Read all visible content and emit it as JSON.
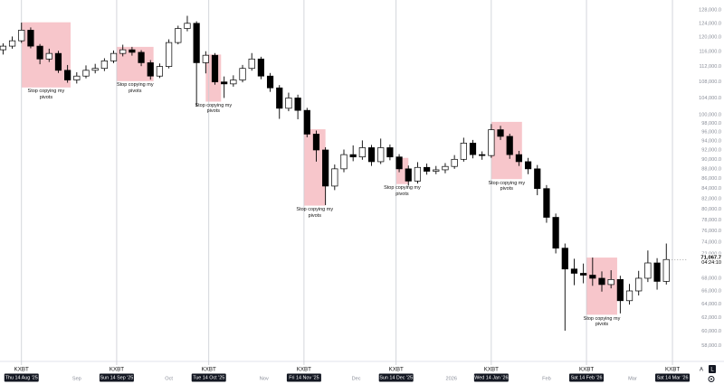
{
  "chart_data": {
    "type": "candlestick",
    "log_scale": true,
    "grid": false,
    "up_color": "#ffffff",
    "down_color": "#000000",
    "x": [
      "2025-08-08",
      "2025-08-11",
      "2025-08-14",
      "2025-08-17",
      "2025-08-20",
      "2025-08-23",
      "2025-08-26",
      "2025-08-29",
      "2025-09-01",
      "2025-09-04",
      "2025-09-07",
      "2025-09-10",
      "2025-09-13",
      "2025-09-16",
      "2025-09-19",
      "2025-09-22",
      "2025-09-25",
      "2025-09-28",
      "2025-10-01",
      "2025-10-04",
      "2025-10-07",
      "2025-10-10",
      "2025-10-13",
      "2025-10-16",
      "2025-10-19",
      "2025-10-22",
      "2025-10-25",
      "2025-10-28",
      "2025-10-31",
      "2025-11-03",
      "2025-11-06",
      "2025-11-09",
      "2025-11-12",
      "2025-11-15",
      "2025-11-18",
      "2025-11-21",
      "2025-11-24",
      "2025-11-27",
      "2025-11-30",
      "2025-12-03",
      "2025-12-06",
      "2025-12-09",
      "2025-12-12",
      "2025-12-15",
      "2025-12-18",
      "2025-12-21",
      "2025-12-24",
      "2025-12-27",
      "2025-12-30",
      "2026-01-02",
      "2026-01-05",
      "2026-01-08",
      "2026-01-11",
      "2026-01-14",
      "2026-01-17",
      "2026-01-20",
      "2026-01-23",
      "2026-01-26",
      "2026-01-29",
      "2026-02-01",
      "2026-02-04",
      "2026-02-07",
      "2026-02-10",
      "2026-02-13",
      "2026-02-16",
      "2026-02-19",
      "2026-02-22",
      "2026-02-25",
      "2026-02-28",
      "2026-03-03",
      "2026-03-06",
      "2026-03-09",
      "2026-03-12"
    ],
    "open": [
      116500,
      117500,
      119000,
      122000,
      117500,
      114000,
      115500,
      111000,
      108500,
      109500,
      111000,
      111500,
      113500,
      115500,
      116500,
      115800,
      113000,
      109500,
      112000,
      118500,
      122500,
      124000,
      113000,
      115000,
      108000,
      107500,
      108500,
      111500,
      114000,
      109500,
      106500,
      101500,
      104000,
      101000,
      95500,
      92000,
      84500,
      88000,
      91000,
      90500,
      92500,
      89500,
      92500,
      90500,
      88000,
      85500,
      88300,
      87500,
      87800,
      88500,
      90000,
      93500,
      91000,
      90800,
      96500,
      95000,
      91000,
      89500,
      88000,
      84000,
      78500,
      73000,
      69500,
      68800,
      68500,
      68000,
      67000,
      67800,
      64500,
      66000,
      68000,
      70500,
      67500
    ],
    "high": [
      118300,
      120200,
      124200,
      122800,
      118100,
      116800,
      116200,
      112400,
      110500,
      112300,
      112700,
      114200,
      116300,
      117900,
      117300,
      116400,
      113700,
      112800,
      119400,
      123300,
      126200,
      124600,
      116100,
      115600,
      109400,
      109700,
      112400,
      115600,
      114600,
      110300,
      107200,
      105300,
      104800,
      101600,
      96300,
      92600,
      88900,
      92100,
      93000,
      94100,
      93100,
      94500,
      93200,
      91100,
      88700,
      89400,
      89100,
      88600,
      89200,
      90900,
      94700,
      94200,
      91700,
      97800,
      97400,
      95600,
      91800,
      90300,
      88800,
      84700,
      79200,
      73800,
      71200,
      70400,
      71400,
      69100,
      69300,
      68400,
      67100,
      69200,
      72600,
      71300,
      73800
    ],
    "low": [
      115200,
      116800,
      118400,
      116900,
      112600,
      113200,
      110300,
      107800,
      107600,
      108900,
      110200,
      110800,
      112900,
      114700,
      114900,
      112100,
      108600,
      109000,
      111500,
      118000,
      121700,
      102000,
      110200,
      107300,
      104000,
      106800,
      107900,
      110900,
      108700,
      105500,
      99000,
      100800,
      98900,
      94800,
      89500,
      80800,
      83700,
      87300,
      89600,
      89900,
      88600,
      89000,
      89800,
      87300,
      84600,
      85000,
      86800,
      86900,
      87100,
      88000,
      89500,
      90200,
      89900,
      90300,
      94200,
      90100,
      88600,
      86900,
      82700,
      77500,
      72100,
      60100,
      66900,
      67200,
      66800,
      65900,
      66400,
      62600,
      63900,
      65300,
      67400,
      66200,
      67000
    ],
    "close": [
      117500,
      119000,
      122000,
      117500,
      114000,
      115500,
      111000,
      108500,
      109500,
      111000,
      111500,
      113500,
      115500,
      116500,
      115800,
      113000,
      109500,
      112000,
      118500,
      122500,
      124000,
      113000,
      115000,
      108000,
      107500,
      108500,
      111500,
      114000,
      109500,
      106500,
      101500,
      104000,
      101000,
      95500,
      92000,
      84500,
      88000,
      91000,
      90500,
      92500,
      89500,
      92500,
      90500,
      88000,
      85500,
      88300,
      87500,
      87800,
      88500,
      90000,
      93500,
      91000,
      90800,
      96500,
      95000,
      91000,
      89500,
      88000,
      84000,
      78500,
      73000,
      69500,
      68800,
      68500,
      68000,
      67000,
      67800,
      64500,
      66000,
      68000,
      70500,
      67500,
      71067.7
    ],
    "xlim": [
      "2025-08-07",
      "2026-03-19"
    ],
    "xticks": [
      {
        "value": "2025-09-01",
        "label": "Sep"
      },
      {
        "value": "2025-10-01",
        "label": "Oct"
      },
      {
        "value": "2025-11-01",
        "label": "Nov"
      },
      {
        "value": "2025-12-01",
        "label": "Dec"
      },
      {
        "value": "2026-01-01",
        "label": "2026"
      },
      {
        "value": "2026-02-01",
        "label": "Feb"
      },
      {
        "value": "2026-03-01",
        "label": "Mar"
      }
    ],
    "markers": [
      {
        "value": "2025-08-14",
        "tag": "KXBT",
        "label": "Thu 14 Aug '25"
      },
      {
        "value": "2025-09-14",
        "tag": "KXBT",
        "label": "Sun 14 Sep '25"
      },
      {
        "value": "2025-10-14",
        "tag": "KXBT",
        "label": "Tue 14 Oct '25"
      },
      {
        "value": "2025-11-14",
        "tag": "KXBT",
        "label": "Fri 14 Nov '25"
      },
      {
        "value": "2025-12-14",
        "tag": "KXBT",
        "label": "Sun 14 Dec '25"
      },
      {
        "value": "2026-01-14",
        "tag": "KXBT",
        "label": "Wed 14 Jan '26"
      },
      {
        "value": "2026-02-14",
        "tag": "KXBT",
        "label": "Sat 14 Feb '26"
      },
      {
        "value": "2026-03-14",
        "tag": "KXBT",
        "label": "Sat 14 Mar '26"
      }
    ],
    "ylim": [
      55900,
      131000
    ],
    "yticks": [
      {
        "value": 58000,
        "label": "58,000.0"
      },
      {
        "value": 60000,
        "label": "60,000.0"
      },
      {
        "value": 62000,
        "label": "62,000.0"
      },
      {
        "value": 64000,
        "label": "64,000.0"
      },
      {
        "value": 66000,
        "label": "66,000.0"
      },
      {
        "value": 68000,
        "label": "68,000.0"
      },
      {
        "value": 72000,
        "label": "72,000.0"
      },
      {
        "value": 74000,
        "label": "74,000.0"
      },
      {
        "value": 76000,
        "label": "76,000.0"
      },
      {
        "value": 78000,
        "label": "78,000.0"
      },
      {
        "value": 80000,
        "label": "80,000.0"
      },
      {
        "value": 82000,
        "label": "82,000.0"
      },
      {
        "value": 84000,
        "label": "84,000.0"
      },
      {
        "value": 86000,
        "label": "86,000.0"
      },
      {
        "value": 88000,
        "label": "88,000.0"
      },
      {
        "value": 90000,
        "label": "90,000.0"
      },
      {
        "value": 92000,
        "label": "92,000.0"
      },
      {
        "value": 94000,
        "label": "94,000.0"
      },
      {
        "value": 96000,
        "label": "96,000.0"
      },
      {
        "value": 98000,
        "label": "98,000.0"
      },
      {
        "value": 100000,
        "label": "100,000.0"
      },
      {
        "value": 104000,
        "label": "104,000.0"
      },
      {
        "value": 108000,
        "label": "108,000.0"
      },
      {
        "value": 112000,
        "label": "112,000.0"
      },
      {
        "value": 116000,
        "label": "116,000.0"
      },
      {
        "value": 120000,
        "label": "120,000.0"
      },
      {
        "value": 124000,
        "label": "124,000.0"
      },
      {
        "value": 128000,
        "label": "128,000.0"
      }
    ],
    "last_price": {
      "value": 71067.7,
      "label": "71,067.7"
    },
    "countdown": "04:24:10",
    "annotation_color": "#f7c3c8",
    "annotations": [
      {
        "text": "Stop copying my pivots",
        "x": [
          "2025-08-14",
          "2025-08-30"
        ],
        "y": [
          106600,
          124300
        ]
      },
      {
        "text": "Stop copying my pivots",
        "x": [
          "2025-09-14",
          "2025-09-26"
        ],
        "y": [
          108200,
          117300
        ]
      },
      {
        "text": "Stop copying my pivots",
        "x": [
          "2025-10-13",
          "2025-10-18"
        ],
        "y": [
          103100,
          115200
        ]
      },
      {
        "text": "Stop copying my pivots",
        "x": [
          "2025-11-14",
          "2025-11-21"
        ],
        "y": [
          80700,
          96600
        ]
      },
      {
        "text": "Stop copying my pivots",
        "x": [
          "2025-12-14",
          "2025-12-18"
        ],
        "y": [
          84900,
          90300
        ]
      },
      {
        "text": "Stop copying my pivots",
        "x": [
          "2026-01-14",
          "2026-01-24"
        ],
        "y": [
          85900,
          98300
        ]
      },
      {
        "text": "Stop copying my pivots",
        "x": [
          "2026-02-14",
          "2026-02-24"
        ],
        "y": [
          62400,
          71400
        ]
      }
    ],
    "buttons": [
      "A",
      "L"
    ]
  }
}
